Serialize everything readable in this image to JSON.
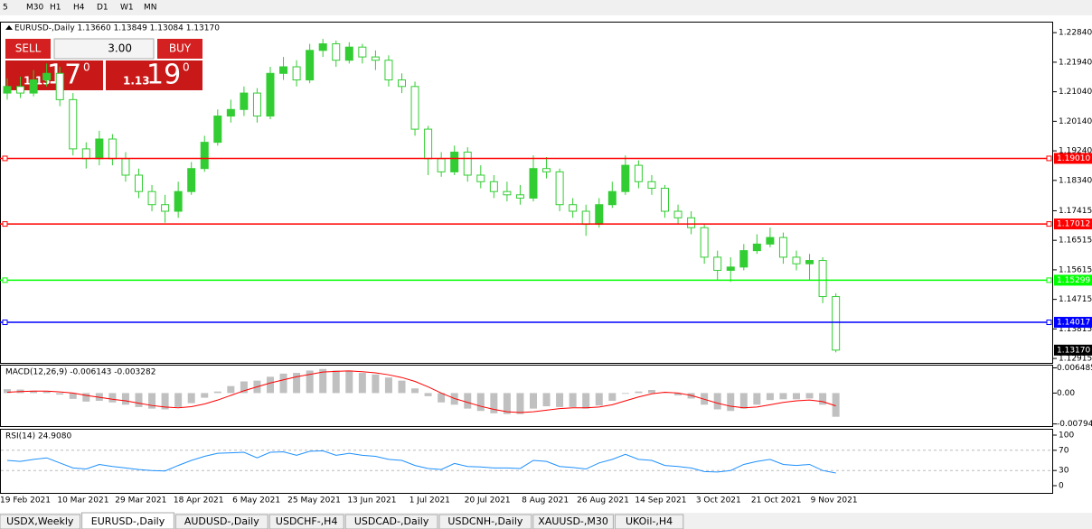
{
  "toolbar": [
    "5",
    "M30",
    "H1",
    "H4",
    "D1",
    "W1",
    "MN"
  ],
  "trade_panel": {
    "sell": "SELL",
    "buy": "BUY",
    "lot": "3.00",
    "sell_prefix": "1.13",
    "sell_big": "17",
    "sell_sup": "0",
    "buy_prefix": "1.13",
    "buy_big": "19",
    "buy_sup": "0"
  },
  "chart_data": {
    "type": "candlestick",
    "title": "EURUSD-,Daily  1.13660 1.13849 1.13084 1.13170",
    "up_color": "#32cd32",
    "down_color": "#32cd32",
    "open": [
      1.21,
      1.212,
      1.21,
      1.214,
      1.216,
      1.208,
      1.193,
      1.19,
      1.196,
      1.19,
      1.185,
      1.18,
      1.176,
      1.174,
      1.18,
      1.187,
      1.195,
      1.203,
      1.205,
      1.21,
      1.203,
      1.216,
      1.218,
      1.214,
      1.223,
      1.225,
      1.22,
      1.224,
      1.221,
      1.22,
      1.214,
      1.212,
      1.199,
      1.19,
      1.186,
      1.192,
      1.185,
      1.183,
      1.18,
      1.179,
      1.178,
      1.187,
      1.186,
      1.176,
      1.174,
      1.17,
      1.176,
      1.18,
      1.188,
      1.183,
      1.181,
      1.174,
      1.172,
      1.169,
      1.16,
      1.156,
      1.157,
      1.162,
      1.164,
      1.166,
      1.16,
      1.158,
      1.159,
      1.148
    ],
    "high": [
      1.2145,
      1.215,
      1.217,
      1.219,
      1.218,
      1.21,
      1.195,
      1.1985,
      1.1975,
      1.192,
      1.187,
      1.182,
      1.179,
      1.183,
      1.189,
      1.197,
      1.205,
      1.208,
      1.212,
      1.2115,
      1.218,
      1.221,
      1.22,
      1.225,
      1.2265,
      1.226,
      1.2255,
      1.225,
      1.223,
      1.2215,
      1.216,
      1.2135,
      1.2,
      1.192,
      1.194,
      1.1935,
      1.188,
      1.185,
      1.183,
      1.182,
      1.191,
      1.1905,
      1.187,
      1.178,
      1.176,
      1.178,
      1.183,
      1.191,
      1.1895,
      1.185,
      1.182,
      1.176,
      1.174,
      1.17,
      1.162,
      1.16,
      1.164,
      1.167,
      1.169,
      1.1675,
      1.162,
      1.161,
      1.16,
      1.149
    ],
    "low": [
      1.208,
      1.2085,
      1.209,
      1.212,
      1.206,
      1.191,
      1.187,
      1.188,
      1.188,
      1.183,
      1.178,
      1.174,
      1.1705,
      1.172,
      1.179,
      1.186,
      1.194,
      1.201,
      1.203,
      1.201,
      1.202,
      1.214,
      1.212,
      1.213,
      1.221,
      1.218,
      1.219,
      1.219,
      1.217,
      1.212,
      1.21,
      1.197,
      1.185,
      1.1845,
      1.185,
      1.183,
      1.181,
      1.178,
      1.177,
      1.176,
      1.177,
      1.184,
      1.174,
      1.172,
      1.1665,
      1.169,
      1.175,
      1.179,
      1.181,
      1.179,
      1.172,
      1.17,
      1.167,
      1.158,
      1.153,
      1.1525,
      1.156,
      1.161,
      1.163,
      1.158,
      1.156,
      1.153,
      1.146,
      1.131
    ],
    "close": [
      1.212,
      1.21,
      1.214,
      1.216,
      1.208,
      1.193,
      1.19,
      1.196,
      1.19,
      1.185,
      1.18,
      1.176,
      1.174,
      1.18,
      1.187,
      1.195,
      1.203,
      1.205,
      1.21,
      1.203,
      1.216,
      1.218,
      1.214,
      1.223,
      1.225,
      1.22,
      1.224,
      1.221,
      1.22,
      1.214,
      1.212,
      1.199,
      1.19,
      1.186,
      1.192,
      1.185,
      1.183,
      1.18,
      1.179,
      1.178,
      1.187,
      1.186,
      1.176,
      1.174,
      1.17,
      1.176,
      1.18,
      1.188,
      1.183,
      1.181,
      1.174,
      1.172,
      1.169,
      1.16,
      1.156,
      1.157,
      1.162,
      1.164,
      1.166,
      1.16,
      1.158,
      1.159,
      1.148,
      1.1317
    ],
    "ylim": [
      1.1278,
      1.2312
    ],
    "yticks": [
      {
        "value": 1.2284,
        "label": "1.22840"
      },
      {
        "value": 1.2194,
        "label": "1.21940"
      },
      {
        "value": 1.2104,
        "label": "1.21040"
      },
      {
        "value": 1.2014,
        "label": "1.20140"
      },
      {
        "value": 1.1924,
        "label": "1.19240"
      },
      {
        "value": 1.1834,
        "label": "1.18340"
      },
      {
        "value": 1.17415,
        "label": "1.17415"
      },
      {
        "value": 1.16515,
        "label": "1.16515"
      },
      {
        "value": 1.15615,
        "label": "1.15615"
      },
      {
        "value": 1.14715,
        "label": "1.14715"
      },
      {
        "value": 1.13815,
        "label": "1.13815"
      },
      {
        "value": 1.12915,
        "label": "1.12915"
      }
    ],
    "levels": [
      {
        "value": 1.1901,
        "label": "1.19010",
        "color": "#ff0000"
      },
      {
        "value": 1.17012,
        "label": "1.17012",
        "color": "#ff0000"
      },
      {
        "value": 1.15299,
        "label": "1.15299",
        "color": "#00ff00"
      },
      {
        "value": 1.14017,
        "label": "1.14017",
        "color": "#0000ff"
      }
    ],
    "current_price": {
      "value": 1.1317,
      "label": "1.13170"
    },
    "dates": [
      "19 Feb 2021",
      "10 Mar 2021",
      "29 Mar 2021",
      "18 Apr 2021",
      "6 May 2021",
      "25 May 2021",
      "13 Jun 2021",
      "1 Jul 2021",
      "20 Jul 2021",
      "8 Aug 2021",
      "26 Aug 2021",
      "14 Sep 2021",
      "3 Oct 2021",
      "21 Oct 2021",
      "9 Nov 2021"
    ],
    "macd": {
      "title": "MACD(12,26,9) -0.006143 -0.003282",
      "ylim": [
        -0.0085,
        0.0073
      ],
      "yticks": [
        0.006485,
        {
          "value": 0,
          "label": "0.00"
        },
        -0.007947
      ],
      "hist_color": "#c0c0c0",
      "signal_color": "#ff0000",
      "histogram": [
        0.001,
        0.0009,
        0.0006,
        0.0004,
        -0.0004,
        -0.0015,
        -0.0022,
        -0.002,
        -0.0024,
        -0.003,
        -0.0036,
        -0.004,
        -0.0042,
        -0.0036,
        -0.0026,
        -0.0012,
        0.0004,
        0.0018,
        0.003,
        0.0032,
        0.0042,
        0.005,
        0.0052,
        0.0058,
        0.0062,
        0.0058,
        0.0058,
        0.0052,
        0.0048,
        0.004,
        0.0032,
        0.0012,
        -0.0008,
        -0.0024,
        -0.003,
        -0.004,
        -0.0046,
        -0.0052,
        -0.0054,
        -0.0054,
        -0.004,
        -0.0034,
        -0.0036,
        -0.0036,
        -0.004,
        -0.0032,
        -0.002,
        -0.0002,
        0.0004,
        0.0008,
        0.0002,
        -0.0006,
        -0.0014,
        -0.003,
        -0.0042,
        -0.0046,
        -0.004,
        -0.003,
        -0.0018,
        -0.0016,
        -0.0016,
        -0.0014,
        -0.003,
        -0.0061
      ],
      "signal": [
        0.0002,
        0.0004,
        0.0005,
        0.0005,
        0.0003,
        0.0,
        -0.0006,
        -0.0011,
        -0.0016,
        -0.002,
        -0.0026,
        -0.0032,
        -0.0036,
        -0.0038,
        -0.0035,
        -0.0028,
        -0.0018,
        -0.0006,
        0.0006,
        0.0016,
        0.0026,
        0.0034,
        0.0042,
        0.0048,
        0.0054,
        0.0056,
        0.0057,
        0.0055,
        0.0052,
        0.0047,
        0.004,
        0.003,
        0.0016,
        0.0,
        -0.0014,
        -0.0024,
        -0.0034,
        -0.0042,
        -0.0048,
        -0.005,
        -0.0048,
        -0.0044,
        -0.004,
        -0.0038,
        -0.0038,
        -0.0036,
        -0.003,
        -0.002,
        -0.001,
        -0.0002,
        0.0002,
        0.0,
        -0.0006,
        -0.0016,
        -0.0026,
        -0.0034,
        -0.0038,
        -0.0036,
        -0.003,
        -0.0024,
        -0.002,
        -0.0018,
        -0.0022,
        -0.0033
      ]
    },
    "rsi": {
      "title": "RSI(14) 24.9080",
      "ylim": [
        0,
        100
      ],
      "yticks": [
        100,
        70,
        30,
        0
      ],
      "levels": [
        70,
        30
      ],
      "color": "#1e90ff",
      "values": [
        50,
        48,
        52,
        55,
        45,
        35,
        33,
        42,
        38,
        35,
        32,
        30,
        29,
        40,
        50,
        58,
        64,
        65,
        66,
        55,
        66,
        67,
        60,
        68,
        69,
        60,
        64,
        60,
        58,
        52,
        50,
        40,
        34,
        32,
        44,
        38,
        37,
        35,
        35,
        34,
        50,
        48,
        38,
        36,
        33,
        45,
        52,
        62,
        52,
        50,
        40,
        38,
        35,
        28,
        27,
        30,
        42,
        48,
        52,
        42,
        40,
        42,
        30,
        25
      ]
    }
  },
  "tabs": [
    "USDX,Weekly",
    "EURUSD-,Daily",
    "AUDUSD-,Daily",
    "USDCHF-,H4",
    "USDCAD-,Daily",
    "USDCNH-,Daily",
    "XAUUSD-,M30",
    "UKOil-,H4"
  ],
  "active_tab": 1
}
